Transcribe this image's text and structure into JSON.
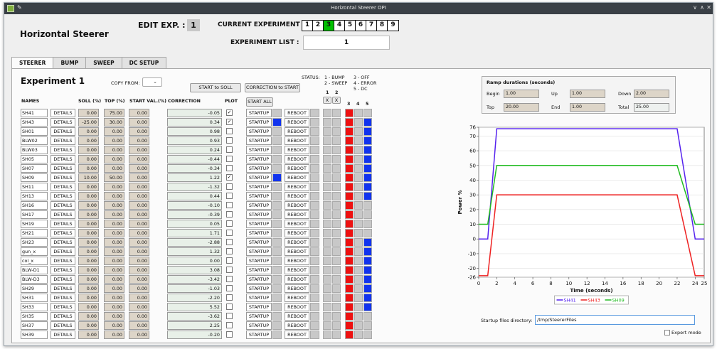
{
  "window": {
    "title": "Horizontal Steerer OPI"
  },
  "header": {
    "title": "Horizontal Steerer",
    "edit_label": "EDIT EXP. :",
    "edit_value": "1",
    "current_label": "CURRENT EXPERIMENT :",
    "experiments": [
      "1",
      "2",
      "3",
      "4",
      "5",
      "6",
      "7",
      "8",
      "9"
    ],
    "current_experiment": "3",
    "list_label": "EXPERIMENT LIST :",
    "list_value": "1"
  },
  "tabs": [
    "STEERER",
    "BUMP",
    "SWEEP",
    "DC SETUP"
  ],
  "panel": {
    "title": "Experiment 1",
    "copy_from_label": "COPY FROM:",
    "start_to_soll": "START to SOLL",
    "correction_to_start": "CORRECTION to START",
    "start_all": "START ALL",
    "status_label": "STATUS:",
    "status_col1": [
      "1 - BUMP",
      "2 - SWEEP"
    ],
    "status_col2": [
      "3 - OFF",
      "4 - ERROR",
      "5 - DC"
    ],
    "status_small": [
      "1",
      "2"
    ],
    "status_x": [
      "X",
      "X"
    ],
    "status_cols": [
      "3",
      "4",
      "5"
    ]
  },
  "columns": {
    "names": "NAMES",
    "soll": "SOLL (%)",
    "top": "TOP (%)",
    "start": "START VAL.(%)",
    "correction": "CORRECTION",
    "plot": "PLOT"
  },
  "row_labels": {
    "details": "DETAILS",
    "startup": "STARTUP",
    "reboot": "REBOOT"
  },
  "rows": [
    {
      "name": "SH41",
      "soll": "0.00",
      "top": "75.00",
      "start": "0.00",
      "corr": "-0.05",
      "plot": true,
      "ind": false,
      "s3": "red",
      "s5": "grey"
    },
    {
      "name": "SH43",
      "soll": "-25.00",
      "top": "30.00",
      "start": "0.00",
      "corr": "0.34",
      "plot": true,
      "ind": true,
      "s3": "red",
      "s5": "blue"
    },
    {
      "name": "SH01",
      "soll": "0.00",
      "top": "0.00",
      "start": "0.00",
      "corr": "0.98",
      "plot": false,
      "ind": false,
      "s3": "red",
      "s5": "blue"
    },
    {
      "name": "BLW02",
      "soll": "0.00",
      "top": "0.00",
      "start": "0.00",
      "corr": "0.93",
      "plot": false,
      "ind": false,
      "s3": "red",
      "s5": "blue"
    },
    {
      "name": "BLW03",
      "soll": "0.00",
      "top": "0.00",
      "start": "0.00",
      "corr": "0.24",
      "plot": false,
      "ind": false,
      "s3": "red",
      "s5": "blue"
    },
    {
      "name": "SH05",
      "soll": "0.00",
      "top": "0.00",
      "start": "0.00",
      "corr": "-0.44",
      "plot": false,
      "ind": false,
      "s3": "red",
      "s5": "blue"
    },
    {
      "name": "SH07",
      "soll": "0.00",
      "top": "0.00",
      "start": "0.00",
      "corr": "-0.34",
      "plot": false,
      "ind": false,
      "s3": "red",
      "s5": "blue"
    },
    {
      "name": "SH09",
      "soll": "10.00",
      "top": "50.00",
      "start": "0.00",
      "corr": "1.22",
      "plot": true,
      "ind": true,
      "s3": "red",
      "s5": "blue"
    },
    {
      "name": "SH11",
      "soll": "0.00",
      "top": "0.00",
      "start": "0.00",
      "corr": "-1.32",
      "plot": false,
      "ind": false,
      "s3": "red",
      "s5": "blue"
    },
    {
      "name": "SH13",
      "soll": "0.00",
      "top": "0.00",
      "start": "0.00",
      "corr": "0.44",
      "plot": false,
      "ind": false,
      "s3": "red",
      "s5": "blue"
    },
    {
      "name": "SH16",
      "soll": "0.00",
      "top": "0.00",
      "start": "0.00",
      "corr": "-0.10",
      "plot": false,
      "ind": false,
      "s3": "red",
      "s5": "grey"
    },
    {
      "name": "SH17",
      "soll": "0.00",
      "top": "0.00",
      "start": "0.00",
      "corr": "-0.39",
      "plot": false,
      "ind": false,
      "s3": "red",
      "s5": "grey"
    },
    {
      "name": "SH19",
      "soll": "0.00",
      "top": "0.00",
      "start": "0.00",
      "corr": "0.05",
      "plot": false,
      "ind": false,
      "s3": "red",
      "s5": "grey"
    },
    {
      "name": "SH21",
      "soll": "0.00",
      "top": "0.00",
      "start": "0.00",
      "corr": "1.71",
      "plot": false,
      "ind": false,
      "s3": "red",
      "s5": "grey"
    },
    {
      "name": "SH23",
      "soll": "0.00",
      "top": "0.00",
      "start": "0.00",
      "corr": "-2.88",
      "plot": false,
      "ind": false,
      "s3": "red",
      "s5": "blue"
    },
    {
      "name": "gun_x",
      "soll": "0.00",
      "top": "0.00",
      "start": "0.00",
      "corr": "1.32",
      "plot": false,
      "ind": false,
      "s3": "red",
      "s5": "blue"
    },
    {
      "name": "col_x",
      "soll": "0.00",
      "top": "0.00",
      "start": "0.00",
      "corr": "0.00",
      "plot": false,
      "ind": false,
      "s3": "red",
      "s5": "blue"
    },
    {
      "name": "BLW-D1",
      "soll": "0.00",
      "top": "0.00",
      "start": "0.00",
      "corr": "3.08",
      "plot": false,
      "ind": false,
      "s3": "red",
      "s5": "blue"
    },
    {
      "name": "BLW-D3",
      "soll": "0.00",
      "top": "0.00",
      "start": "0.00",
      "corr": "-3.42",
      "plot": false,
      "ind": false,
      "s3": "red",
      "s5": "blue"
    },
    {
      "name": "SH29",
      "soll": "0.00",
      "top": "0.00",
      "start": "0.00",
      "corr": "-1.03",
      "plot": false,
      "ind": false,
      "s3": "red",
      "s5": "blue"
    },
    {
      "name": "SH31",
      "soll": "0.00",
      "top": "0.00",
      "start": "0.00",
      "corr": "-2.20",
      "plot": false,
      "ind": false,
      "s3": "red",
      "s5": "blue"
    },
    {
      "name": "SH33",
      "soll": "0.00",
      "top": "0.00",
      "start": "0.00",
      "corr": "5.52",
      "plot": false,
      "ind": false,
      "s3": "red",
      "s5": "blue"
    },
    {
      "name": "SH35",
      "soll": "0.00",
      "top": "0.00",
      "start": "0.00",
      "corr": "-3.62",
      "plot": false,
      "ind": false,
      "s3": "red",
      "s5": "grey"
    },
    {
      "name": "SH37",
      "soll": "0.00",
      "top": "0.00",
      "start": "0.00",
      "corr": "2.25",
      "plot": false,
      "ind": false,
      "s3": "red",
      "s5": "grey"
    },
    {
      "name": "SH39",
      "soll": "0.00",
      "top": "0.00",
      "start": "0.00",
      "corr": "-0.20",
      "plot": false,
      "ind": false,
      "s3": "red",
      "s5": "grey"
    }
  ],
  "ramp": {
    "title": "Ramp durations (seconds)",
    "begin_label": "Begin",
    "begin": "1.00",
    "up_label": "Up",
    "up": "1.00",
    "down_label": "Down",
    "down": "2.00",
    "top_label": "Top",
    "top": "20.00",
    "end_label": "End",
    "end": "1.00",
    "total_label": "Total",
    "total": "25.00"
  },
  "colors": {
    "red": "#ee1111",
    "blue": "#1133ee",
    "grey": "#c8c8c8",
    "green_active": "#00c000"
  },
  "chart_data": {
    "type": "line",
    "xlabel": "Time (seconds)",
    "ylabel": "Power %",
    "xlim": [
      0,
      25
    ],
    "ylim": [
      -26,
      76
    ],
    "xticks": [
      "0",
      "2",
      "4",
      "6",
      "8",
      "10",
      "12",
      "14",
      "16",
      "18",
      "20",
      "22",
      "24",
      "25"
    ],
    "yticks": [
      "76",
      "70",
      "60",
      "50",
      "40",
      "30",
      "20",
      "10",
      "0",
      "-10",
      "-20",
      "-26"
    ],
    "series": [
      {
        "name": "SH41",
        "color": "#5522ee",
        "x": [
          0,
          1,
          2,
          22,
          24,
          25
        ],
        "y": [
          0,
          0,
          75,
          75,
          0,
          0
        ]
      },
      {
        "name": "SH43",
        "color": "#ee2222",
        "x": [
          0,
          1,
          2,
          22,
          24,
          25
        ],
        "y": [
          -25,
          -25,
          30,
          30,
          -25,
          -25
        ]
      },
      {
        "name": "SH09",
        "color": "#22bb22",
        "x": [
          0,
          1,
          2,
          22,
          24,
          25
        ],
        "y": [
          10,
          10,
          50,
          50,
          10,
          10
        ]
      }
    ]
  },
  "footer": {
    "dir_label": "Startup files directory:",
    "dir_value": "/tmp/SteererFiles",
    "expert_label": "Expert mode"
  }
}
